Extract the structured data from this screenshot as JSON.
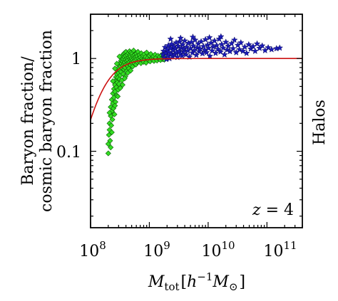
{
  "chart_data": {
    "type": "scatter",
    "title": "",
    "xlabel": "M_tot [h^-1 M_⊙]",
    "xlabel_parts": {
      "main": "M",
      "sub": "tot",
      "bracket_open": "[",
      "h": "h",
      "h_exp": "−1",
      "msun": "M",
      "msun_sub": "⊙",
      "bracket_close": "]"
    },
    "ylabel_lines": [
      "Baryon fraction/",
      "cosmic baryon fraction"
    ],
    "side_label": "Halos",
    "annotation": {
      "var": "z",
      "rest": " = 4"
    },
    "x_scale": "log",
    "y_scale": "log",
    "xlim": [
      100000000.0,
      400000000000.0
    ],
    "ylim": [
      0.015,
      3.0
    ],
    "x_ticks": [
      {
        "base": "10",
        "exp": "8",
        "value": 100000000.0
      },
      {
        "base": "10",
        "exp": "9",
        "value": 1000000000.0
      },
      {
        "base": "10",
        "exp": "10",
        "value": 10000000000.0
      },
      {
        "base": "10",
        "exp": "11",
        "value": 100000000000.0
      }
    ],
    "y_ticks": [
      {
        "label": "1",
        "value": 1
      },
      {
        "label": "0.1",
        "value": 0.1
      }
    ],
    "grid": false,
    "legend": "none",
    "colors": {
      "low_mass_fill": "#33dd22",
      "low_mass_edge": "#0a5a05",
      "high_mass_fill": "#1a1ab8",
      "high_mass_edge": "#0a0a60",
      "fit_line": "#cc1111"
    },
    "series": [
      {
        "marker": "diamond",
        "color": "#33dd22",
        "points": [
          [
            200000000.0,
            0.095
          ],
          [
            200000000.0,
            0.12
          ],
          [
            205000000.0,
            0.15
          ],
          [
            210000000.0,
            0.17
          ],
          [
            210000000.0,
            0.2
          ],
          [
            215000000.0,
            0.13
          ],
          [
            220000000.0,
            0.24
          ],
          [
            220000000.0,
            0.3
          ],
          [
            225000000.0,
            0.19
          ],
          [
            230000000.0,
            0.27
          ],
          [
            230000000.0,
            0.36
          ],
          [
            235000000.0,
            0.22
          ],
          [
            240000000.0,
            0.33
          ],
          [
            240000000.0,
            0.42
          ],
          [
            245000000.0,
            0.29
          ],
          [
            250000000.0,
            0.47
          ],
          [
            250000000.0,
            0.38
          ],
          [
            255000000.0,
            0.25
          ],
          [
            260000000.0,
            0.52
          ],
          [
            260000000.0,
            0.44
          ],
          [
            265000000.0,
            0.34
          ],
          [
            270000000.0,
            0.58
          ],
          [
            270000000.0,
            0.63
          ],
          [
            275000000.0,
            0.49
          ],
          [
            280000000.0,
            0.4
          ],
          [
            280000000.0,
            0.68
          ],
          [
            285000000.0,
            0.55
          ],
          [
            290000000.0,
            0.74
          ],
          [
            290000000.0,
            0.62
          ],
          [
            295000000.0,
            0.46
          ],
          [
            300000000.0,
            0.79
          ],
          [
            300000000.0,
            0.7
          ],
          [
            305000000.0,
            0.53
          ],
          [
            310000000.0,
            0.85
          ],
          [
            310000000.0,
            0.6
          ],
          [
            315000000.0,
            0.75
          ],
          [
            320000000.0,
            0.9
          ],
          [
            320000000.0,
            0.66
          ],
          [
            325000000.0,
            0.82
          ],
          [
            330000000.0,
            0.95
          ],
          [
            330000000.0,
            0.72
          ],
          [
            335000000.0,
            0.88
          ],
          [
            340000000.0,
            1.02
          ],
          [
            340000000.0,
            0.58
          ],
          [
            345000000.0,
            0.78
          ],
          [
            350000000.0,
            0.93
          ],
          [
            350000000.0,
            1.08
          ],
          [
            355000000.0,
            0.84
          ],
          [
            360000000.0,
            0.68
          ],
          [
            360000000.0,
            0.98
          ],
          [
            365000000.0,
            1.12
          ],
          [
            370000000.0,
            0.87
          ],
          [
            370000000.0,
            0.76
          ],
          [
            375000000.0,
            1.04
          ],
          [
            380000000.0,
            0.91
          ],
          [
            380000000.0,
            1.15
          ],
          [
            385000000.0,
            0.8
          ],
          [
            390000000.0,
            0.97
          ],
          [
            390000000.0,
            0.64
          ],
          [
            395000000.0,
            1.07
          ],
          [
            400000000.0,
            0.86
          ],
          [
            400000000.0,
            1.18
          ],
          [
            410000000.0,
            0.94
          ],
          [
            410000000.0,
            0.73
          ],
          [
            420000000.0,
            1.01
          ],
          [
            420000000.0,
            1.1
          ],
          [
            430000000.0,
            0.83
          ],
          [
            430000000.0,
            0.96
          ],
          [
            440000000.0,
            1.14
          ],
          [
            440000000.0,
            0.89
          ],
          [
            450000000.0,
            1.03
          ],
          [
            450000000.0,
            0.78
          ],
          [
            460000000.0,
            1.2
          ],
          [
            460000000.0,
            0.92
          ],
          [
            470000000.0,
            0.99
          ],
          [
            470000000.0,
            1.09
          ],
          [
            480000000.0,
            0.85
          ],
          [
            480000000.0,
            1.05
          ],
          [
            490000000.0,
            0.95
          ],
          [
            490000000.0,
            1.16
          ],
          [
            500000000.0,
            0.9
          ],
          [
            500000000.0,
            1.0
          ],
          [
            510000000.0,
            1.12
          ],
          [
            520000000.0,
            0.82
          ],
          [
            520000000.0,
            0.97
          ],
          [
            530000000.0,
            1.07
          ],
          [
            540000000.0,
            0.93
          ],
          [
            540000000.0,
            1.22
          ],
          [
            550000000.0,
            1.01
          ],
          [
            560000000.0,
            0.88
          ],
          [
            560000000.0,
            1.1
          ],
          [
            570000000.0,
            0.96
          ],
          [
            580000000.0,
            1.04
          ],
          [
            590000000.0,
            0.86
          ],
          [
            600000000.0,
            1.13
          ],
          [
            600000000.0,
            0.99
          ],
          [
            620000000.0,
            1.06
          ],
          [
            630000000.0,
            0.91
          ],
          [
            640000000.0,
            1.18
          ],
          [
            650000000.0,
            1.0
          ],
          [
            660000000.0,
            0.94
          ],
          [
            680000000.0,
            1.09
          ],
          [
            690000000.0,
            0.97
          ],
          [
            700000000.0,
            1.03
          ],
          [
            720000000.0,
            0.89
          ],
          [
            730000000.0,
            1.14
          ],
          [
            750000000.0,
            1.0
          ],
          [
            760000000.0,
            0.95
          ],
          [
            780000000.0,
            1.07
          ],
          [
            800000000.0,
            0.92
          ],
          [
            820000000.0,
            1.11
          ],
          [
            840000000.0,
            0.98
          ],
          [
            860000000.0,
            1.04
          ],
          [
            880000000.0,
            0.9
          ],
          [
            900000000.0,
            1.16
          ],
          [
            930000000.0,
            1.01
          ],
          [
            960000000.0,
            0.96
          ],
          [
            1000000000.0,
            1.08
          ],
          [
            1030000000.0,
            0.93
          ],
          [
            1060000000.0,
            1.12
          ],
          [
            1100000000.0,
            1.0
          ],
          [
            1130000000.0,
            0.97
          ],
          [
            1170000000.0,
            1.06
          ],
          [
            1200000000.0,
            0.94
          ],
          [
            1250000000.0,
            1.1
          ],
          [
            1300000000.0,
            1.02
          ],
          [
            1350000000.0,
            0.95
          ],
          [
            1400000000.0,
            1.07
          ],
          [
            1450000000.0,
            0.99
          ],
          [
            1500000000.0,
            1.04
          ],
          [
            1550000000.0,
            0.96
          ],
          [
            1600000000.0,
            1.09
          ],
          [
            1650000000.0,
            1.01
          ],
          [
            1700000000.0,
            0.98
          ],
          [
            1750000000.0,
            1.05
          ],
          [
            1800000000.0,
            0.97
          ],
          [
            220000000.0,
            0.11
          ],
          [
            230000000.0,
            0.16
          ],
          [
            260000000.0,
            0.31
          ],
          [
            290000000.0,
            0.39
          ],
          [
            320000000.0,
            0.48
          ],
          [
            350000000.0,
            0.52
          ],
          [
            380000000.0,
            0.61
          ],
          [
            430000000.0,
            0.7
          ],
          [
            480000000.0,
            0.74
          ],
          [
            210000000.0,
            0.26
          ],
          [
            240000000.0,
            0.57
          ],
          [
            280000000.0,
            0.88
          ],
          [
            310000000.0,
            1.05
          ],
          [
            260000000.0,
            0.78
          ]
        ]
      },
      {
        "marker": "star",
        "color": "#1a1ab8",
        "points": [
          [
            1700000000.0,
            1.1
          ],
          [
            1750000000.0,
            1.2
          ],
          [
            1800000000.0,
            1.02
          ],
          [
            1850000000.0,
            1.32
          ],
          [
            1900000000.0,
            1.14
          ],
          [
            1950000000.0,
            0.98
          ],
          [
            2000000000.0,
            1.25
          ],
          [
            2050000000.0,
            1.08
          ],
          [
            2100000000.0,
            1.38
          ],
          [
            2150000000.0,
            1.17
          ],
          [
            2200000000.0,
            1.0
          ],
          [
            2300000000.0,
            1.29
          ],
          [
            2350000000.0,
            1.12
          ],
          [
            2400000000.0,
            1.43
          ],
          [
            2500000000.0,
            1.05
          ],
          [
            2550000000.0,
            1.22
          ],
          [
            2600000000.0,
            1.34
          ],
          [
            2700000000.0,
            1.1
          ],
          [
            2800000000.0,
            1.27
          ],
          [
            2850000000.0,
            1.48
          ],
          [
            2900000000.0,
            1.16
          ],
          [
            3000000000.0,
            1.03
          ],
          [
            3100000000.0,
            1.36
          ],
          [
            3200000000.0,
            1.2
          ],
          [
            3300000000.0,
            1.52
          ],
          [
            3400000000.0,
            1.12
          ],
          [
            3500000000.0,
            1.3
          ],
          [
            3600000000.0,
            1.07
          ],
          [
            3700000000.0,
            1.41
          ],
          [
            3800000000.0,
            1.18
          ],
          [
            3900000000.0,
            1.26
          ],
          [
            4000000000.0,
            1.55
          ],
          [
            4200000000.0,
            1.1
          ],
          [
            4300000000.0,
            1.33
          ],
          [
            4500000000.0,
            1.21
          ],
          [
            4600000000.0,
            1.46
          ],
          [
            4800000000.0,
            1.04
          ],
          [
            5000000000.0,
            1.28
          ],
          [
            5200000000.0,
            1.5
          ],
          [
            5400000000.0,
            1.15
          ],
          [
            5600000000.0,
            1.37
          ],
          [
            5800000000.0,
            1.22
          ],
          [
            6000000000.0,
            1.58
          ],
          [
            6300000000.0,
            1.09
          ],
          [
            6500000000.0,
            1.31
          ],
          [
            6800000000.0,
            1.44
          ],
          [
            7000000000.0,
            1.19
          ],
          [
            7300000000.0,
            1.27
          ],
          [
            7600000000.0,
            1.52
          ],
          [
            8000000000.0,
            1.13
          ],
          [
            8300000000.0,
            1.35
          ],
          [
            8700000000.0,
            1.24
          ],
          [
            9000000000.0,
            1.6
          ],
          [
            9400000000.0,
            1.16
          ],
          [
            9800000000.0,
            1.4
          ],
          [
            10200000000.0,
            1.29
          ],
          [
            10700000000.0,
            1.06
          ],
          [
            11200000000.0,
            1.47
          ],
          [
            11700000000.0,
            1.21
          ],
          [
            12200000000.0,
            1.34
          ],
          [
            12800000000.0,
            1.55
          ],
          [
            13400000000.0,
            1.14
          ],
          [
            14000000000.0,
            1.38
          ],
          [
            14700000000.0,
            1.26
          ],
          [
            15400000000.0,
            1.62
          ],
          [
            16200000000.0,
            1.18
          ],
          [
            17000000000.0,
            1.42
          ],
          [
            18000000000.0,
            1.3
          ],
          [
            19000000000.0,
            1.1
          ],
          [
            20000000000.0,
            1.5
          ],
          [
            21000000000.0,
            1.24
          ],
          [
            22000000000.0,
            1.36
          ],
          [
            23500000000.0,
            1.19
          ],
          [
            25000000000.0,
            1.45
          ],
          [
            26500000000.0,
            1.28
          ],
          [
            28000000000.0,
            1.58
          ],
          [
            30000000000.0,
            1.16
          ],
          [
            32000000000.0,
            1.39
          ],
          [
            34000000000.0,
            1.25
          ],
          [
            36000000000.0,
            1.48
          ],
          [
            39000000000.0,
            1.2
          ],
          [
            42000000000.0,
            1.33
          ],
          [
            45000000000.0,
            1.14
          ],
          [
            49000000000.0,
            1.41
          ],
          [
            53000000000.0,
            1.27
          ],
          [
            58000000000.0,
            1.35
          ],
          [
            63000000000.0,
            1.2
          ],
          [
            68000000000.0,
            1.44
          ],
          [
            75000000000.0,
            1.29
          ],
          [
            83000000000.0,
            1.37
          ],
          [
            93000000000.0,
            1.22
          ],
          [
            105000000000.0,
            1.31
          ],
          [
            120000000000.0,
            1.25
          ],
          [
            145000000000.0,
            1.28
          ],
          [
            165000000000.0,
            1.3
          ],
          [
            2300000000.0,
            1.62
          ],
          [
            3400000000.0,
            1.66
          ],
          [
            5500000000.0,
            1.7
          ],
          [
            10500000000.0,
            1.68
          ],
          [
            16500000000.0,
            1.72
          ]
        ]
      },
      {
        "marker": "line",
        "color": "#cc1111",
        "model": "y = (1 + (2^(1/3) - 1) * (Mc/M)^2)^(-3/2)",
        "Mc": 260000000.0,
        "x_range": [
          100000000.0,
          400000000000.0
        ]
      }
    ]
  }
}
